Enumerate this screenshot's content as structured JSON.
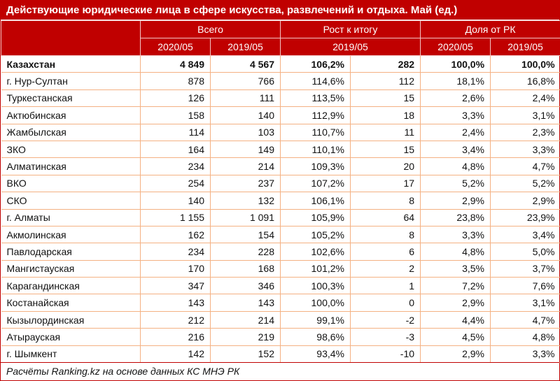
{
  "title": "Действующие юридические лица в сфере искусства, развлечений и отдыха. Май (ед.)",
  "colors": {
    "header_bg": "#c00000",
    "grid": "#f4b183"
  },
  "chart_data": {
    "type": "table",
    "header_groups": [
      "Всего",
      "Рост к итогу",
      "Доля от РК"
    ],
    "subheaders": [
      "2020/05",
      "2019/05",
      "2019/05",
      "2020/05",
      "2019/05"
    ],
    "rows": [
      [
        "Казахстан",
        "4 849",
        "4 567",
        "106,2%",
        "282",
        "100,0%",
        "100,0%"
      ],
      [
        "г. Нур-Султан",
        "878",
        "766",
        "114,6%",
        "112",
        "18,1%",
        "16,8%"
      ],
      [
        "Туркестанская",
        "126",
        "111",
        "113,5%",
        "15",
        "2,6%",
        "2,4%"
      ],
      [
        "Актюбинская",
        "158",
        "140",
        "112,9%",
        "18",
        "3,3%",
        "3,1%"
      ],
      [
        "Жамбылская",
        "114",
        "103",
        "110,7%",
        "11",
        "2,4%",
        "2,3%"
      ],
      [
        "ЗКО",
        "164",
        "149",
        "110,1%",
        "15",
        "3,4%",
        "3,3%"
      ],
      [
        "Алматинская",
        "234",
        "214",
        "109,3%",
        "20",
        "4,8%",
        "4,7%"
      ],
      [
        "ВКО",
        "254",
        "237",
        "107,2%",
        "17",
        "5,2%",
        "5,2%"
      ],
      [
        "СКО",
        "140",
        "132",
        "106,1%",
        "8",
        "2,9%",
        "2,9%"
      ],
      [
        "г. Алматы",
        "1 155",
        "1 091",
        "105,9%",
        "64",
        "23,8%",
        "23,9%"
      ],
      [
        "Акмолинская",
        "162",
        "154",
        "105,2%",
        "8",
        "3,3%",
        "3,4%"
      ],
      [
        "Павлодарская",
        "234",
        "228",
        "102,6%",
        "6",
        "4,8%",
        "5,0%"
      ],
      [
        "Мангистауская",
        "170",
        "168",
        "101,2%",
        "2",
        "3,5%",
        "3,7%"
      ],
      [
        "Карагандинская",
        "347",
        "346",
        "100,3%",
        "1",
        "7,2%",
        "7,6%"
      ],
      [
        "Костанайская",
        "143",
        "143",
        "100,0%",
        "0",
        "2,9%",
        "3,1%"
      ],
      [
        "Кызылординская",
        "212",
        "214",
        "99,1%",
        "-2",
        "4,4%",
        "4,7%"
      ],
      [
        "Атырауская",
        "216",
        "219",
        "98,6%",
        "-3",
        "4,5%",
        "4,8%"
      ],
      [
        "г. Шымкент",
        "142",
        "152",
        "93,4%",
        "-10",
        "2,9%",
        "3,3%"
      ]
    ]
  },
  "footer": "Расчёты Ranking.kz на основе данных КС МНЭ РК"
}
